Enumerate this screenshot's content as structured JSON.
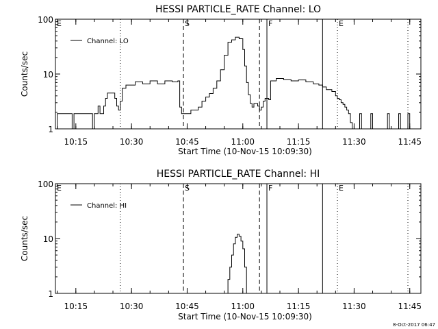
{
  "footer": {
    "timestamp": "8-Oct-2017 06:47"
  },
  "chart_data": [
    {
      "type": "line",
      "title": "HESSI PARTICLE_RATE Channel: LO",
      "xlabel": "Start Time (10-Nov-15 10:09:30)",
      "ylabel": "Counts/sec",
      "y_scale": "log",
      "ylim": [
        1,
        100
      ],
      "yticks": [
        1,
        10,
        100
      ],
      "ytick_labels": [
        "1",
        "10",
        "100"
      ],
      "xlim": [
        "10:09:30",
        "11:48:00"
      ],
      "xticks": [
        "10:15",
        "10:30",
        "10:45",
        "11:00",
        "11:15",
        "11:30",
        "11:45"
      ],
      "legend": {
        "placement": "top-left",
        "entries": [
          "Channel: LO"
        ]
      },
      "markers": [
        {
          "label": "E",
          "time": "10:09:30",
          "style": "dotted"
        },
        {
          "label": "",
          "time": "10:27:00",
          "style": "dotted"
        },
        {
          "label": "S",
          "time": "10:44:00",
          "style": "dashed"
        },
        {
          "label": "",
          "time": "11:04:30",
          "style": "dashed"
        },
        {
          "label": "F",
          "time": "11:06:30",
          "style": "solid"
        },
        {
          "label": "",
          "time": "11:21:30",
          "style": "solid"
        },
        {
          "label": "E",
          "time": "11:25:30",
          "style": "dotted"
        },
        {
          "label": "",
          "time": "11:44:30",
          "style": "dotted"
        }
      ],
      "series": [
        {
          "name": "Channel: LO",
          "points": [
            [
              "10:09:30",
              1
            ],
            [
              "10:10:00",
              1.9
            ],
            [
              "10:12:00",
              1.9
            ],
            [
              "10:14:00",
              1
            ],
            [
              "10:14:30",
              1.9
            ],
            [
              "10:19:00",
              1.9
            ],
            [
              "10:19:30",
              1
            ],
            [
              "10:20:00",
              1.9
            ],
            [
              "10:21:00",
              2.6
            ],
            [
              "10:21:30",
              1.9
            ],
            [
              "10:22:30",
              2.6
            ],
            [
              "10:23:00",
              3.6
            ],
            [
              "10:23:30",
              4.5
            ],
            [
              "10:25:00",
              4.5
            ],
            [
              "10:25:30",
              3.6
            ],
            [
              "10:26:00",
              2.6
            ],
            [
              "10:26:30",
              2.2
            ],
            [
              "10:27:00",
              3.2
            ],
            [
              "10:27:30",
              5.5
            ],
            [
              "10:28:30",
              6.3
            ],
            [
              "10:30:00",
              6.3
            ],
            [
              "10:31:00",
              7.2
            ],
            [
              "10:33:00",
              6.6
            ],
            [
              "10:35:00",
              7.5
            ],
            [
              "10:37:00",
              6.6
            ],
            [
              "10:39:00",
              7.5
            ],
            [
              "10:41:00",
              7.2
            ],
            [
              "10:42:30",
              7.5
            ],
            [
              "10:43:00",
              2.5
            ],
            [
              "10:43:30",
              1.9
            ],
            [
              "10:45:00",
              1.9
            ],
            [
              "10:46:00",
              2.2
            ],
            [
              "10:48:00",
              2.5
            ],
            [
              "10:49:00",
              3.2
            ],
            [
              "10:50:00",
              3.8
            ],
            [
              "10:51:00",
              4.4
            ],
            [
              "10:52:00",
              5.5
            ],
            [
              "10:53:00",
              7.5
            ],
            [
              "10:54:00",
              12
            ],
            [
              "10:55:00",
              22
            ],
            [
              "10:56:00",
              38
            ],
            [
              "10:57:00",
              42
            ],
            [
              "10:58:00",
              47
            ],
            [
              "10:59:00",
              44
            ],
            [
              "11:00:00",
              28
            ],
            [
              "11:00:30",
              14
            ],
            [
              "11:01:00",
              7
            ],
            [
              "11:01:30",
              4.2
            ],
            [
              "11:02:00",
              2.9
            ],
            [
              "11:02:30",
              2.5
            ],
            [
              "11:03:00",
              2.9
            ],
            [
              "11:04:00",
              2.6
            ],
            [
              "11:04:30",
              2.2
            ],
            [
              "11:05:00",
              2.5
            ],
            [
              "11:05:30",
              3.2
            ],
            [
              "11:06:00",
              3.6
            ],
            [
              "11:07:00",
              3.4
            ],
            [
              "11:07:30",
              7.5
            ],
            [
              "11:09:00",
              8.3
            ],
            [
              "11:11:00",
              7.9
            ],
            [
              "11:13:00",
              7.5
            ],
            [
              "11:15:00",
              7.8
            ],
            [
              "11:17:00",
              7.2
            ],
            [
              "11:19:00",
              6.6
            ],
            [
              "11:20:30",
              6.3
            ],
            [
              "11:21:30",
              5.8
            ],
            [
              "11:22:30",
              5.2
            ],
            [
              "11:24:00",
              4.8
            ],
            [
              "11:25:00",
              4.0
            ],
            [
              "11:25:30",
              3.6
            ],
            [
              "11:26:00",
              3.4
            ],
            [
              "11:26:30",
              3.0
            ],
            [
              "11:27:00",
              2.8
            ],
            [
              "11:27:30",
              2.5
            ],
            [
              "11:28:00",
              2.2
            ],
            [
              "11:28:30",
              1.9
            ],
            [
              "11:29:00",
              1.3
            ],
            [
              "11:29:30",
              1.0
            ],
            [
              "11:31:00",
              1.0
            ],
            [
              "11:31:30",
              1.9
            ],
            [
              "11:32:00",
              1.0
            ],
            [
              "11:34:00",
              1.0
            ],
            [
              "11:34:30",
              1.9
            ],
            [
              "11:35:00",
              1.0
            ],
            [
              "11:38:30",
              1.0
            ],
            [
              "11:39:00",
              1.9
            ],
            [
              "11:39:30",
              1.0
            ],
            [
              "11:41:30",
              1.0
            ],
            [
              "11:42:00",
              1.9
            ],
            [
              "11:42:30",
              1.0
            ],
            [
              "11:44:00",
              1.0
            ],
            [
              "11:44:30",
              1.9
            ],
            [
              "11:45:00",
              1.0
            ]
          ]
        }
      ]
    },
    {
      "type": "line",
      "title": "HESSI PARTICLE_RATE Channel: HI",
      "xlabel": "Start Time (10-Nov-15 10:09:30)",
      "ylabel": "Counts/sec",
      "y_scale": "log",
      "ylim": [
        1,
        100
      ],
      "yticks": [
        1,
        10,
        100
      ],
      "ytick_labels": [
        "1",
        "10",
        "100"
      ],
      "xlim": [
        "10:09:30",
        "11:48:00"
      ],
      "xticks": [
        "10:15",
        "10:30",
        "10:45",
        "11:00",
        "11:15",
        "11:30",
        "11:45"
      ],
      "legend": {
        "placement": "top-left",
        "entries": [
          "Channel: HI"
        ]
      },
      "markers": [
        {
          "label": "E",
          "time": "10:09:30",
          "style": "dotted"
        },
        {
          "label": "",
          "time": "10:27:00",
          "style": "dotted"
        },
        {
          "label": "S",
          "time": "10:44:00",
          "style": "dashed"
        },
        {
          "label": "",
          "time": "11:04:30",
          "style": "dashed"
        },
        {
          "label": "F",
          "time": "11:06:30",
          "style": "solid"
        },
        {
          "label": "",
          "time": "11:21:30",
          "style": "solid"
        },
        {
          "label": "E",
          "time": "11:25:30",
          "style": "dotted"
        },
        {
          "label": "",
          "time": "11:44:30",
          "style": "dotted"
        }
      ],
      "series": [
        {
          "name": "Channel: HI",
          "points": [
            [
              "10:55:30",
              1.0
            ],
            [
              "10:56:00",
              1.8
            ],
            [
              "10:56:30",
              3.0
            ],
            [
              "10:57:00",
              5.0
            ],
            [
              "10:57:30",
              8.0
            ],
            [
              "10:58:00",
              10.5
            ],
            [
              "10:58:30",
              12.0
            ],
            [
              "10:59:00",
              11.0
            ],
            [
              "10:59:30",
              9.0
            ],
            [
              "11:00:00",
              6.5
            ],
            [
              "11:00:30",
              3.0
            ],
            [
              "11:01:00",
              1.0
            ]
          ]
        }
      ]
    }
  ]
}
